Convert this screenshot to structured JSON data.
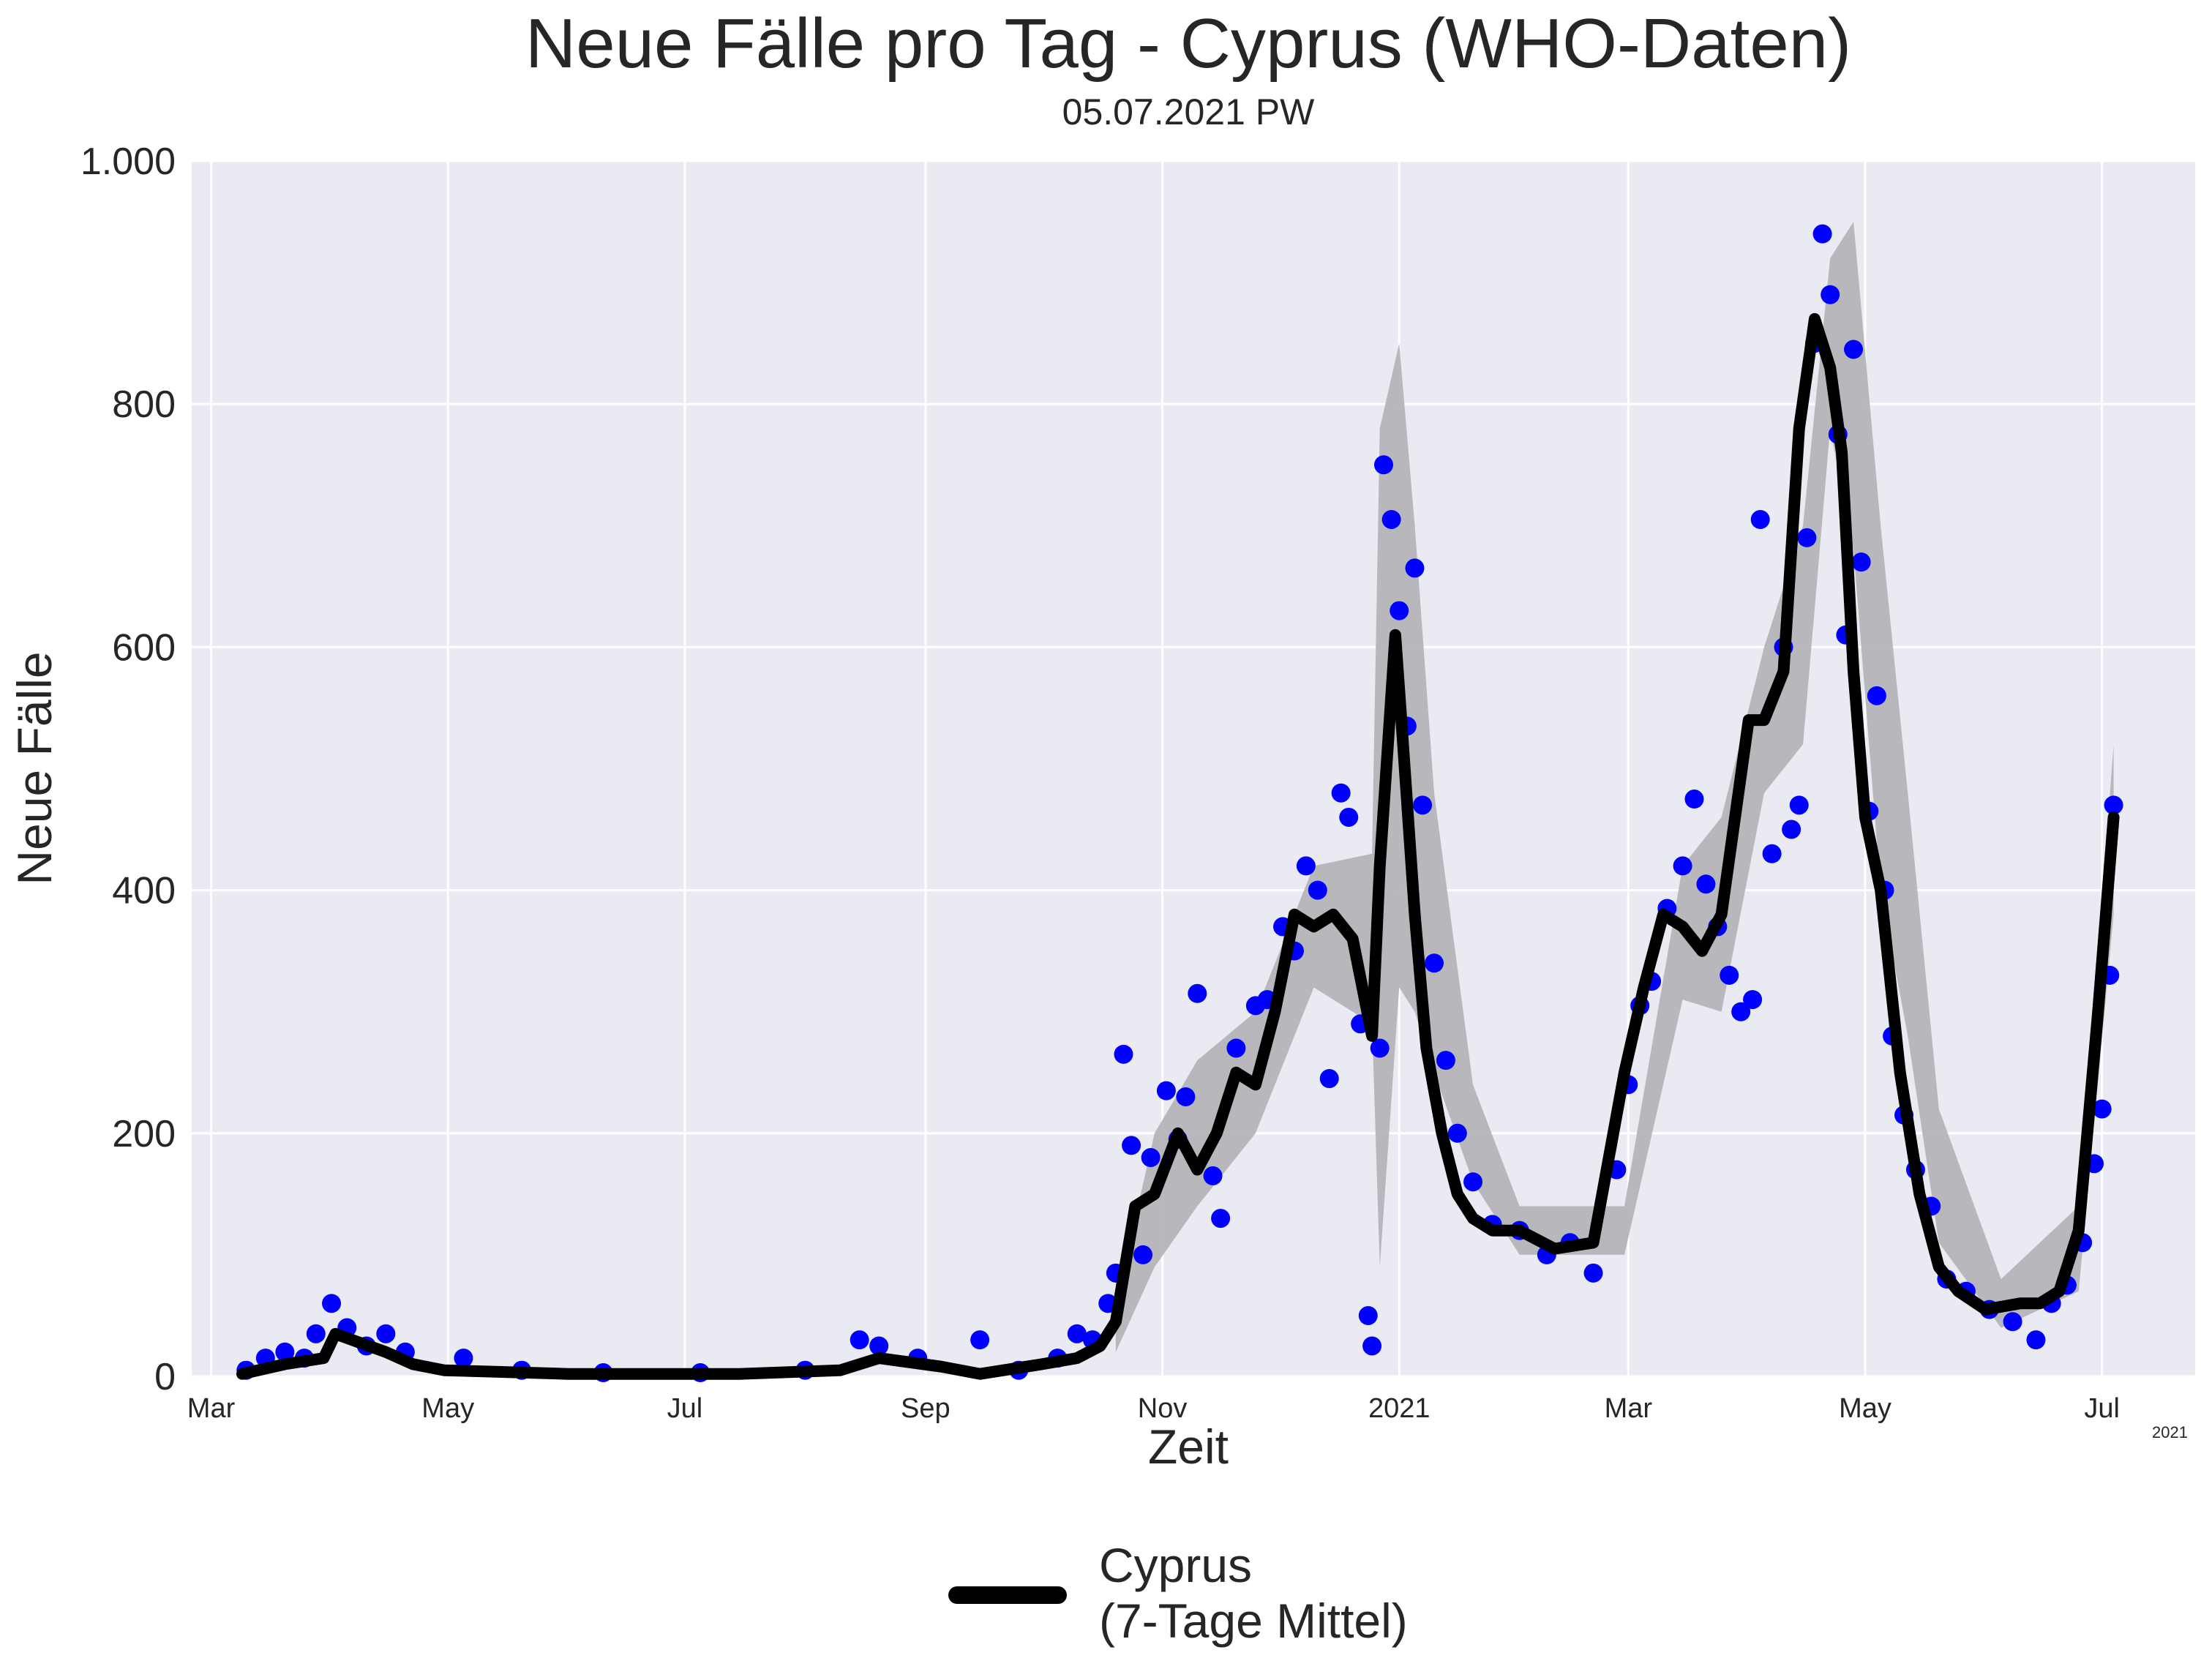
{
  "chart_data": {
    "type": "line",
    "title": "Neue Fälle pro Tag - Cyprus (WHO-Daten)",
    "subtitle": "05.07.2021 PW",
    "xlabel": "Zeit",
    "ylabel": "Neue Fälle",
    "x_offset_label": "2021",
    "ylim": [
      0,
      1000
    ],
    "xlim": [
      "2020-02-25",
      "2021-07-25"
    ],
    "grid": true,
    "legend_placement": "bottom-center",
    "y_ticks": [
      {
        "value": 0,
        "label": "0"
      },
      {
        "value": 200,
        "label": "200"
      },
      {
        "value": 400,
        "label": "400"
      },
      {
        "value": 600,
        "label": "600"
      },
      {
        "value": 800,
        "label": "800"
      },
      {
        "value": 1000,
        "label": "1.000"
      }
    ],
    "x_ticks": [
      {
        "date": "2020-03-01",
        "label": "Mar"
      },
      {
        "date": "2020-05-01",
        "label": "May"
      },
      {
        "date": "2020-07-01",
        "label": "Jul"
      },
      {
        "date": "2020-09-01",
        "label": "Sep"
      },
      {
        "date": "2020-11-01",
        "label": "Nov"
      },
      {
        "date": "2021-01-01",
        "label": "2021"
      },
      {
        "date": "2021-03-01",
        "label": "Mar"
      },
      {
        "date": "2021-05-01",
        "label": "May"
      },
      {
        "date": "2021-07-01",
        "label": "Jul"
      }
    ],
    "colors": {
      "points": "#0000ff",
      "line": "#000000",
      "band": "#b5b5b8",
      "plot_background": "#eaeaf2",
      "grid": "#ffffff"
    },
    "series": [
      {
        "name": "Cyprus\n(7-Tage Mittel)",
        "kind": "line",
        "x": [
          "2020-03-09",
          "2020-03-20",
          "2020-03-30",
          "2020-04-02",
          "2020-04-08",
          "2020-04-15",
          "2020-04-22",
          "2020-04-30",
          "2020-06-01",
          "2020-07-15",
          "2020-08-10",
          "2020-08-20",
          "2020-09-05",
          "2020-09-15",
          "2020-10-01",
          "2020-10-10",
          "2020-10-16",
          "2020-10-20",
          "2020-10-25",
          "2020-10-30",
          "2020-11-05",
          "2020-11-10",
          "2020-11-15",
          "2020-11-20",
          "2020-11-25",
          "2020-11-30",
          "2020-12-05",
          "2020-12-10",
          "2020-12-15",
          "2020-12-20",
          "2020-12-25",
          "2020-12-27",
          "2020-12-31",
          "2021-01-02",
          "2021-01-05",
          "2021-01-08",
          "2021-01-12",
          "2021-01-16",
          "2021-01-20",
          "2021-01-25",
          "2021-02-01",
          "2021-02-10",
          "2021-02-20",
          "2021-02-28",
          "2021-03-05",
          "2021-03-10",
          "2021-03-15",
          "2021-03-20",
          "2021-03-25",
          "2021-04-01",
          "2021-04-05",
          "2021-04-10",
          "2021-04-14",
          "2021-04-18",
          "2021-04-22",
          "2021-04-25",
          "2021-04-28",
          "2021-05-01",
          "2021-05-05",
          "2021-05-10",
          "2021-05-15",
          "2021-05-20",
          "2021-05-25",
          "2021-06-01",
          "2021-06-10",
          "2021-06-15",
          "2021-06-20",
          "2021-06-25",
          "2021-06-30",
          "2021-07-04"
        ],
        "values": [
          2,
          10,
          15,
          35,
          28,
          20,
          10,
          5,
          2,
          2,
          5,
          15,
          8,
          2,
          10,
          15,
          25,
          45,
          140,
          150,
          200,
          170,
          200,
          250,
          240,
          300,
          380,
          370,
          380,
          360,
          280,
          420,
          610,
          520,
          380,
          270,
          200,
          150,
          130,
          120,
          120,
          105,
          110,
          250,
          320,
          380,
          370,
          350,
          380,
          540,
          540,
          580,
          780,
          870,
          830,
          760,
          580,
          460,
          400,
          250,
          150,
          90,
          70,
          55,
          60,
          60,
          70,
          120,
          300,
          460
        ]
      }
    ],
    "band_note": "shaded variability band around 7-day mean",
    "band": {
      "x": [
        "2020-10-20",
        "2020-10-30",
        "2020-11-10",
        "2020-11-25",
        "2020-12-10",
        "2020-12-25",
        "2020-12-27",
        "2021-01-01",
        "2021-01-05",
        "2021-01-10",
        "2021-01-20",
        "2021-02-01",
        "2021-02-28",
        "2021-03-15",
        "2021-03-25",
        "2021-04-05",
        "2021-04-15",
        "2021-04-22",
        "2021-04-28",
        "2021-05-05",
        "2021-05-12",
        "2021-05-20",
        "2021-06-05",
        "2021-06-25",
        "2021-07-04"
      ],
      "upper": [
        60,
        200,
        260,
        300,
        420,
        430,
        780,
        850,
        700,
        480,
        240,
        140,
        140,
        420,
        460,
        600,
        700,
        920,
        950,
        700,
        480,
        220,
        80,
        140,
        520
      ],
      "lower": [
        20,
        90,
        140,
        200,
        320,
        290,
        90,
        320,
        300,
        250,
        160,
        100,
        100,
        310,
        300,
        480,
        520,
        780,
        680,
        400,
        280,
        110,
        40,
        70,
        380
      ]
    },
    "points_name": "daily new cases",
    "points": {
      "x": [
        "2020-03-10",
        "2020-03-15",
        "2020-03-20",
        "2020-03-25",
        "2020-03-28",
        "2020-04-01",
        "2020-04-05",
        "2020-04-10",
        "2020-04-15",
        "2020-04-20",
        "2020-05-05",
        "2020-05-20",
        "2020-06-10",
        "2020-07-05",
        "2020-08-01",
        "2020-08-15",
        "2020-08-20",
        "2020-08-30",
        "2020-09-15",
        "2020-09-25",
        "2020-10-05",
        "2020-10-10",
        "2020-10-14",
        "2020-10-18",
        "2020-10-20",
        "2020-10-22",
        "2020-10-24",
        "2020-10-27",
        "2020-10-29",
        "2020-11-02",
        "2020-11-05",
        "2020-11-07",
        "2020-11-10",
        "2020-11-14",
        "2020-11-16",
        "2020-11-20",
        "2020-11-25",
        "2020-11-28",
        "2020-12-02",
        "2020-12-05",
        "2020-12-08",
        "2020-12-11",
        "2020-12-14",
        "2020-12-17",
        "2020-12-19",
        "2020-12-22",
        "2020-12-24",
        "2020-12-25",
        "2020-12-27",
        "2020-12-28",
        "2020-12-30",
        "2021-01-01",
        "2021-01-03",
        "2021-01-05",
        "2021-01-07",
        "2021-01-10",
        "2021-01-13",
        "2021-01-16",
        "2021-01-20",
        "2021-01-25",
        "2021-02-01",
        "2021-02-08",
        "2021-02-14",
        "2021-02-20",
        "2021-02-26",
        "2021-03-01",
        "2021-03-04",
        "2021-03-07",
        "2021-03-11",
        "2021-03-15",
        "2021-03-18",
        "2021-03-21",
        "2021-03-24",
        "2021-03-27",
        "2021-03-30",
        "2021-04-02",
        "2021-04-04",
        "2021-04-07",
        "2021-04-10",
        "2021-04-12",
        "2021-04-14",
        "2021-04-16",
        "2021-04-18",
        "2021-04-20",
        "2021-04-22",
        "2021-04-24",
        "2021-04-26",
        "2021-04-28",
        "2021-04-30",
        "2021-05-02",
        "2021-05-04",
        "2021-05-06",
        "2021-05-08",
        "2021-05-11",
        "2021-05-14",
        "2021-05-18",
        "2021-05-22",
        "2021-05-27",
        "2021-06-02",
        "2021-06-08",
        "2021-06-14",
        "2021-06-18",
        "2021-06-22",
        "2021-06-26",
        "2021-06-29",
        "2021-07-01",
        "2021-07-03",
        "2021-07-04"
      ],
      "values": [
        5,
        15,
        20,
        15,
        35,
        60,
        40,
        25,
        35,
        20,
        15,
        5,
        3,
        3,
        5,
        30,
        25,
        15,
        30,
        5,
        15,
        35,
        30,
        60,
        85,
        265,
        190,
        100,
        180,
        235,
        195,
        230,
        315,
        165,
        130,
        270,
        305,
        310,
        370,
        350,
        420,
        400,
        245,
        480,
        460,
        290,
        50,
        25,
        270,
        750,
        705,
        630,
        535,
        665,
        470,
        340,
        260,
        200,
        160,
        125,
        120,
        100,
        110,
        85,
        170,
        240,
        305,
        325,
        385,
        420,
        475,
        405,
        370,
        330,
        300,
        310,
        705,
        430,
        600,
        450,
        470,
        690,
        850,
        940,
        890,
        775,
        610,
        845,
        670,
        465,
        560,
        400,
        280,
        215,
        170,
        140,
        80,
        70,
        55,
        45,
        30,
        60,
        75,
        110,
        175,
        220,
        330,
        470
      ]
    }
  },
  "legend": {
    "label_line1": "Cyprus",
    "label_line2": "(7-Tage Mittel)"
  }
}
